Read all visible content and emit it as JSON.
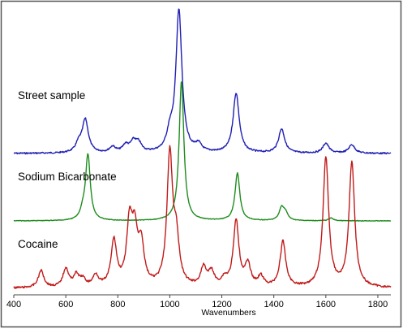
{
  "chart_data": {
    "type": "line",
    "xlabel": "Wavenumbers",
    "ylabel": "",
    "xlim": [
      400,
      1850
    ],
    "x_ticks": [
      "400",
      "600",
      "800",
      "1000",
      "1200",
      "1400",
      "1600",
      "1800"
    ],
    "x_tick_values": [
      400,
      600,
      800,
      1000,
      1200,
      1400,
      1600,
      1800
    ],
    "y_ticks_shown": false,
    "grid": false,
    "legend": "inline labels above each trace",
    "series": [
      {
        "name": "Street sample",
        "color": "#1f1fb4",
        "peaks": [
          {
            "x": 650,
            "height": 0.06
          },
          {
            "x": 675,
            "height": 0.23
          },
          {
            "x": 780,
            "height": 0.04
          },
          {
            "x": 830,
            "height": 0.05
          },
          {
            "x": 860,
            "height": 0.07
          },
          {
            "x": 880,
            "height": 0.06
          },
          {
            "x": 1000,
            "height": 0.11
          },
          {
            "x": 1035,
            "height": 1.0
          },
          {
            "x": 1110,
            "height": 0.05
          },
          {
            "x": 1255,
            "height": 0.42
          },
          {
            "x": 1430,
            "height": 0.17
          },
          {
            "x": 1600,
            "height": 0.07
          },
          {
            "x": 1700,
            "height": 0.06
          }
        ]
      },
      {
        "name": "Sodium Bicarbonate",
        "color": "#1e8c1e",
        "peaks": [
          {
            "x": 665,
            "height": 0.05
          },
          {
            "x": 685,
            "height": 0.47
          },
          {
            "x": 1045,
            "height": 1.0
          },
          {
            "x": 1260,
            "height": 0.34
          },
          {
            "x": 1430,
            "height": 0.09
          },
          {
            "x": 1445,
            "height": 0.05
          },
          {
            "x": 1620,
            "height": 0.02
          }
        ]
      },
      {
        "name": "Cocaine",
        "color": "#c11a1a",
        "peaks": [
          {
            "x": 505,
            "height": 0.12
          },
          {
            "x": 600,
            "height": 0.13
          },
          {
            "x": 640,
            "height": 0.08
          },
          {
            "x": 665,
            "height": 0.05
          },
          {
            "x": 715,
            "height": 0.08
          },
          {
            "x": 785,
            "height": 0.32
          },
          {
            "x": 845,
            "height": 0.42
          },
          {
            "x": 865,
            "height": 0.34
          },
          {
            "x": 890,
            "height": 0.28
          },
          {
            "x": 1000,
            "height": 0.92
          },
          {
            "x": 1025,
            "height": 0.3
          },
          {
            "x": 1130,
            "height": 0.13
          },
          {
            "x": 1160,
            "height": 0.1
          },
          {
            "x": 1210,
            "height": 0.05
          },
          {
            "x": 1255,
            "height": 0.46
          },
          {
            "x": 1300,
            "height": 0.15
          },
          {
            "x": 1350,
            "height": 0.07
          },
          {
            "x": 1435,
            "height": 0.32
          },
          {
            "x": 1600,
            "height": 0.91
          },
          {
            "x": 1700,
            "height": 0.88
          }
        ]
      }
    ]
  }
}
